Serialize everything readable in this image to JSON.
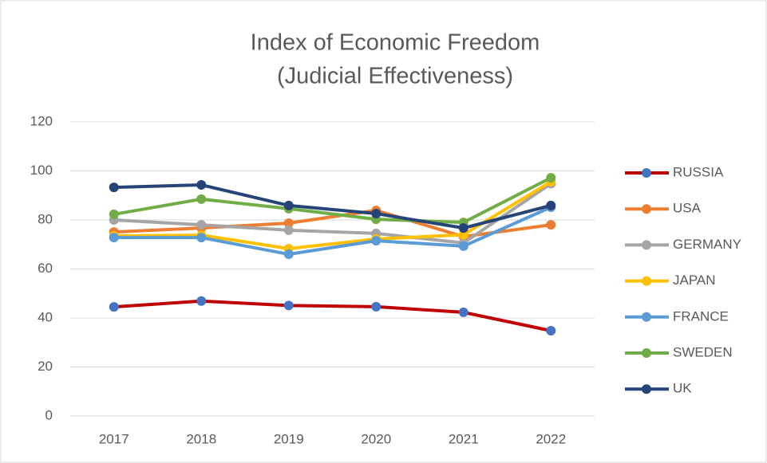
{
  "chart_data": {
    "type": "line",
    "title": "Index of Economic Freedom",
    "subtitle": "(Judicial Effectiveness)",
    "categories": [
      "2017",
      "2018",
      "2019",
      "2020",
      "2021",
      "2022"
    ],
    "series": [
      {
        "name": "RUSSIA",
        "color": "#c00000",
        "marker_color": "#4472c4",
        "values": [
          44.5,
          46.9,
          45.1,
          44.6,
          42.3,
          34.8
        ]
      },
      {
        "name": "USA",
        "color": "#ed7d31",
        "marker_color": "#ed7d31",
        "values": [
          75.1,
          76.7,
          78.7,
          83.9,
          73.2,
          78
        ]
      },
      {
        "name": "GERMANY",
        "color": "#a5a5a5",
        "marker_color": "#a5a5a5",
        "values": [
          80,
          78,
          75.8,
          74.5,
          70.6,
          94.8
        ]
      },
      {
        "name": "JAPAN",
        "color": "#ffc000",
        "marker_color": "#ffc000",
        "values": [
          73.5,
          73.8,
          68.3,
          72.2,
          74,
          95.6
        ]
      },
      {
        "name": "FRANCE",
        "color": "#5b9bd5",
        "marker_color": "#5b9bd5",
        "values": [
          72.8,
          72.8,
          66,
          71.5,
          69.3,
          85.2
        ]
      },
      {
        "name": "SWEDEN",
        "color": "#70ad47",
        "marker_color": "#70ad47",
        "values": [
          82.3,
          88.5,
          84.6,
          80.3,
          79,
          97.2
        ]
      },
      {
        "name": "UK",
        "color": "#264478",
        "marker_color": "#264478",
        "values": [
          93.3,
          94.3,
          85.9,
          82.6,
          76.7,
          85.9
        ]
      }
    ],
    "ylim": [
      0,
      120
    ],
    "yticks": [
      0,
      20,
      40,
      60,
      80,
      100,
      120
    ],
    "grid": true,
    "legend": "right"
  }
}
